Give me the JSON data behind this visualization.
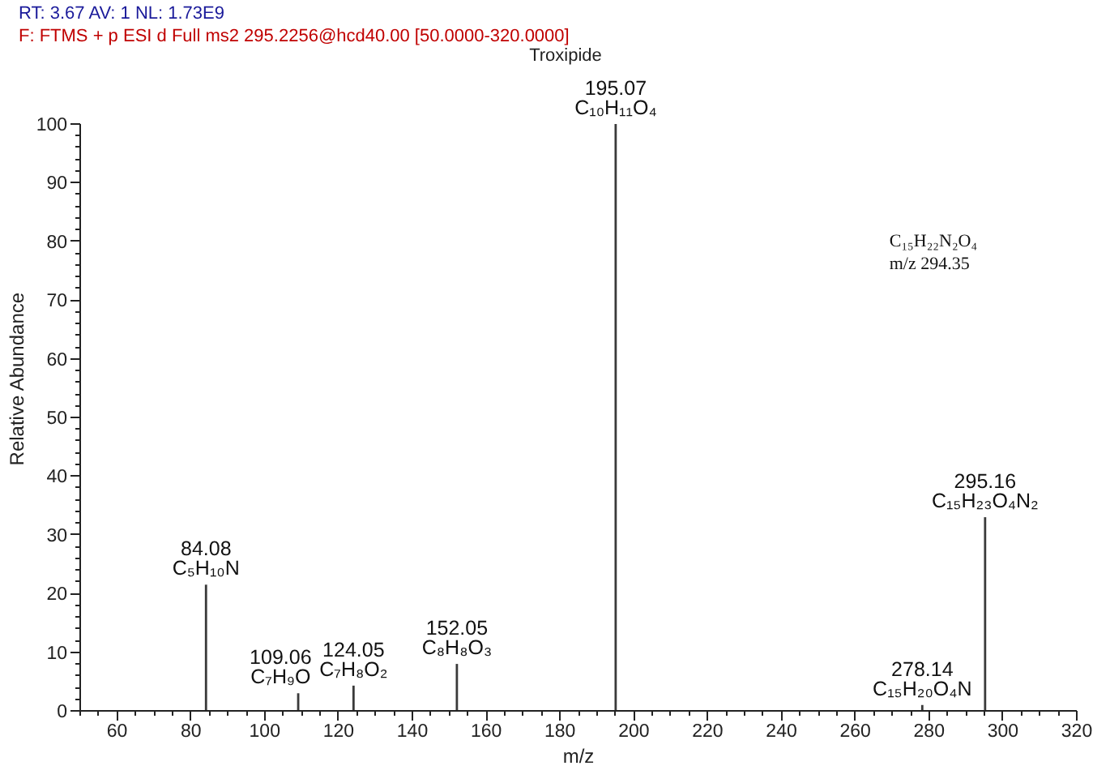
{
  "chart_data": {
    "type": "bar",
    "title": "Troxipide",
    "xlabel": "m/z",
    "ylabel": "Relative Abundance",
    "x": [
      84.08,
      109.06,
      124.05,
      152.05,
      195.07,
      278.14,
      295.16
    ],
    "values": [
      21.5,
      3,
      4.3,
      8,
      100,
      1,
      33
    ],
    "color": "#3a3a3a",
    "xlim": [
      50,
      320
    ],
    "xticks": [
      60,
      80,
      100,
      120,
      140,
      160,
      180,
      200,
      220,
      240,
      260,
      280,
      300,
      320
    ],
    "ylim": [
      0,
      100
    ],
    "yticks": [
      0,
      10,
      20,
      30,
      40,
      50,
      60,
      70,
      80,
      90,
      100
    ],
    "grid": false,
    "annotations": [
      "RT: 3.67   AV: 1   NL: 1.73E9",
      "F: FTMS + p ESI d Full ms2 295.2256@hcd40.00 [50.0000-320.0000]",
      "C₁₅H₂₂N₂O₄",
      "m/z  294.35",
      {
        "text": "84.08\nC₅H₁₀N",
        "x": 84.08,
        "y": 21.5
      },
      {
        "text": "109.06\nC₇H₉O",
        "x": 109.06,
        "y": 3
      },
      {
        "text": "124.05\nC₇H₈O₂",
        "x": 124.05,
        "y": 4.3
      },
      {
        "text": "152.05\nC₈H₈O₃",
        "x": 152.05,
        "y": 8
      },
      {
        "text": "195.07\nC₁₀H₁₁O₄",
        "x": 195.07,
        "y": 100
      },
      {
        "text": "278.14\nC₁₅H₂₀O₄N",
        "x": 278.14,
        "y": 1
      },
      {
        "text": "295.16\nC₁₅H₂₃O₄N₂",
        "x": 295.16,
        "y": 33
      }
    ]
  }
}
